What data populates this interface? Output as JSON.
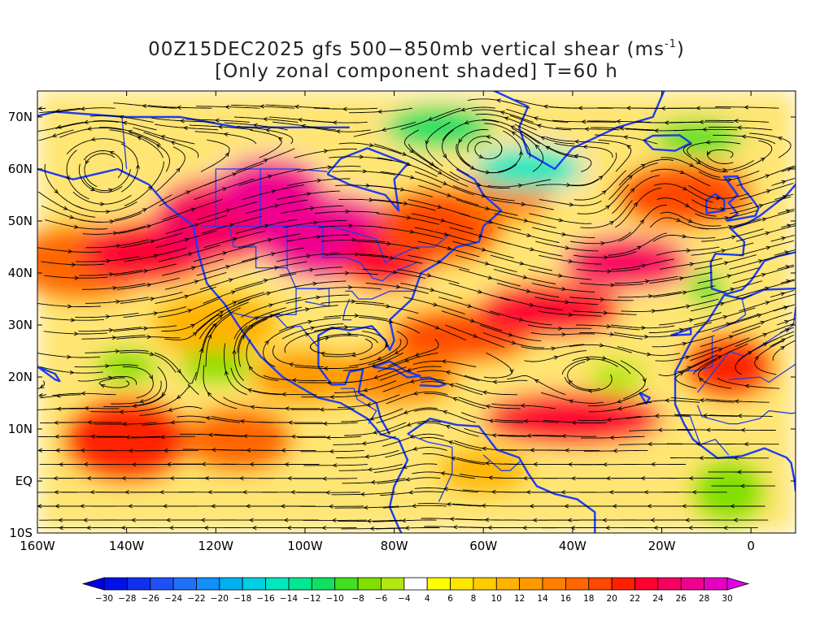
{
  "title": {
    "line1_main": "00Z15DEC2025 gfs 500−850mb vertical shear (ms",
    "line1_sup": "-1",
    "line1_end": ")",
    "line2": "[Only zonal component shaded] T=60 h"
  },
  "axes": {
    "lon_ticks": [
      {
        "value": -160,
        "label": "160W"
      },
      {
        "value": -140,
        "label": "140W"
      },
      {
        "value": -120,
        "label": "120W"
      },
      {
        "value": -100,
        "label": "100W"
      },
      {
        "value": -80,
        "label": "80W"
      },
      {
        "value": -60,
        "label": "60W"
      },
      {
        "value": -40,
        "label": "40W"
      },
      {
        "value": -20,
        "label": "20W"
      },
      {
        "value": 0,
        "label": "0"
      }
    ],
    "lat_ticks": [
      {
        "value": -10,
        "label": "10S"
      },
      {
        "value": 0,
        "label": "EQ"
      },
      {
        "value": 10,
        "label": "10N"
      },
      {
        "value": 20,
        "label": "20N"
      },
      {
        "value": 30,
        "label": "30N"
      },
      {
        "value": 40,
        "label": "40N"
      },
      {
        "value": 50,
        "label": "50N"
      },
      {
        "value": 60,
        "label": "60N"
      },
      {
        "value": 70,
        "label": "70N"
      }
    ],
    "lon_range": [
      -160,
      10
    ],
    "lat_range": [
      -10,
      75
    ]
  },
  "colorbar": {
    "levels": [
      -30,
      -28,
      -26,
      -24,
      -22,
      -20,
      -18,
      -16,
      -14,
      -12,
      -10,
      -8,
      -6,
      -4,
      4,
      6,
      8,
      10,
      12,
      14,
      16,
      18,
      20,
      22,
      24,
      26,
      28,
      30
    ],
    "labels": [
      "−30",
      "−28",
      "−26",
      "−24",
      "−22",
      "−20",
      "−18",
      "−16",
      "−14",
      "−12",
      "−10",
      "−8",
      "−6",
      "−4",
      "4",
      "6",
      "8",
      "10",
      "12",
      "14",
      "16",
      "18",
      "20",
      "22",
      "24",
      "26",
      "28",
      "30"
    ],
    "colors": [
      "#0010e8",
      "#1030f0",
      "#2050f5",
      "#2070f8",
      "#1090f8",
      "#00b0f0",
      "#00d0e0",
      "#00e8c0",
      "#00e890",
      "#10e060",
      "#40e020",
      "#80e000",
      "#b0e810",
      "#ffffff",
      "#ffff00",
      "#ffe600",
      "#ffcc00",
      "#ffb300",
      "#ff9a00",
      "#ff8000",
      "#ff6600",
      "#ff4800",
      "#ff2000",
      "#ff0030",
      "#f80060",
      "#f00090",
      "#e800c0"
    ],
    "min_color": "#0000e0",
    "max_color": "#e000e8"
  },
  "colors": {
    "streamlines": "#000000",
    "coastlines": "#1e3cf0"
  },
  "shear_regions": [
    {
      "lon": -150,
      "lat": 42,
      "rx": 16,
      "ry": 7,
      "value": 17
    },
    {
      "lon": -135,
      "lat": 44,
      "rx": 15,
      "ry": 6,
      "value": 22
    },
    {
      "lon": -120,
      "lat": 50,
      "rx": 14,
      "ry": 8,
      "value": 25
    },
    {
      "lon": -108,
      "lat": 56,
      "rx": 12,
      "ry": 6,
      "value": 27
    },
    {
      "lon": -95,
      "lat": 47,
      "rx": 16,
      "ry": 8,
      "value": 27
    },
    {
      "lon": -82,
      "lat": 42,
      "rx": 10,
      "ry": 5,
      "value": 23
    },
    {
      "lon": -70,
      "lat": 49,
      "rx": 14,
      "ry": 7,
      "value": 18
    },
    {
      "lon": -55,
      "lat": 55,
      "rx": 10,
      "ry": 5,
      "value": 15
    },
    {
      "lon": -65,
      "lat": 28,
      "rx": 16,
      "ry": 5,
      "value": 18
    },
    {
      "lon": -45,
      "lat": 33,
      "rx": 16,
      "ry": 5,
      "value": 23
    },
    {
      "lon": -28,
      "lat": 42,
      "rx": 14,
      "ry": 5,
      "value": 24
    },
    {
      "lon": -15,
      "lat": 55,
      "rx": 15,
      "ry": 6,
      "value": 19
    },
    {
      "lon": -5,
      "lat": 22,
      "rx": 10,
      "ry": 6,
      "value": 20
    },
    {
      "lon": -40,
      "lat": 12,
      "rx": 20,
      "ry": 5,
      "value": 22
    },
    {
      "lon": -80,
      "lat": 20,
      "rx": 14,
      "ry": 5,
      "value": 15
    },
    {
      "lon": -140,
      "lat": 8,
      "rx": 14,
      "ry": 8,
      "value": 21
    },
    {
      "lon": -115,
      "lat": 8,
      "rx": 12,
      "ry": 6,
      "value": 16
    },
    {
      "lon": -100,
      "lat": 20,
      "rx": 12,
      "ry": 5,
      "value": 13
    },
    {
      "lon": -120,
      "lat": 30,
      "rx": 14,
      "ry": 6,
      "value": 11
    },
    {
      "lon": -60,
      "lat": 2,
      "rx": 10,
      "ry": 4,
      "value": 10
    },
    {
      "lon": -70,
      "lat": 68,
      "rx": 12,
      "ry": 4,
      "value": -11
    },
    {
      "lon": -50,
      "lat": 60,
      "rx": 12,
      "ry": 4,
      "value": -15
    },
    {
      "lon": -12,
      "lat": 66,
      "rx": 10,
      "ry": 3,
      "value": -9
    },
    {
      "lon": -120,
      "lat": 22,
      "rx": 8,
      "ry": 3,
      "value": -8
    },
    {
      "lon": -140,
      "lat": 22,
      "rx": 7,
      "ry": 3,
      "value": -8
    },
    {
      "lon": -30,
      "lat": 20,
      "rx": 6,
      "ry": 3,
      "value": -6
    },
    {
      "lon": -5,
      "lat": -2,
      "rx": 8,
      "ry": 6,
      "value": -8
    },
    {
      "lon": -10,
      "lat": 37,
      "rx": 4,
      "ry": 3,
      "value": -9
    }
  ]
}
